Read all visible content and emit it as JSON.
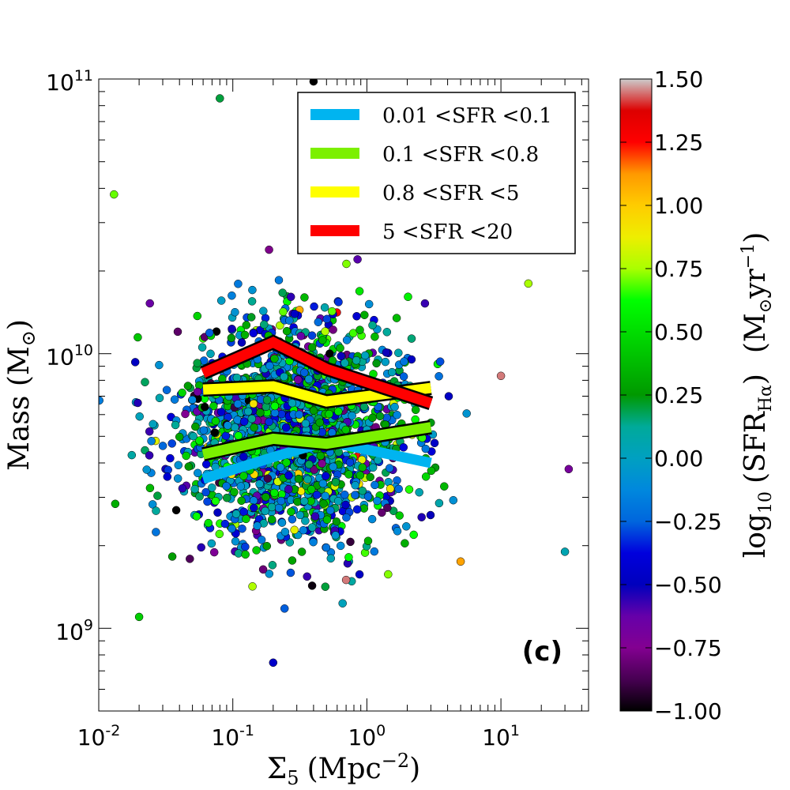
{
  "chart_data": {
    "type": "scatter",
    "panel_label": "(c)",
    "xlabel": "Σ5 (Mpc−2)",
    "xlabel_parts": {
      "symbol": "Σ",
      "sub": "5",
      "unit_open": "(Mpc",
      "sup": "−2",
      "unit_close": ")"
    },
    "ylabel": "Mass (M⊙)",
    "ylabel_parts": {
      "name": "Mass (M",
      "sub": "⊙",
      "close": ")"
    },
    "xscale": "log",
    "yscale": "log",
    "xlim": [
      0.01,
      45
    ],
    "ylim": [
      500000000,
      100000000000
    ],
    "x_ticks": [
      {
        "value": 0.01,
        "base": "10",
        "exp": "-2"
      },
      {
        "value": 0.1,
        "base": "10",
        "exp": "-1"
      },
      {
        "value": 1,
        "base": "10",
        "exp": "0"
      },
      {
        "value": 10,
        "base": "10",
        "exp": "1"
      }
    ],
    "y_ticks": [
      {
        "value": 1000000000,
        "base": "10",
        "exp": "9"
      },
      {
        "value": 10000000000,
        "base": "10",
        "exp": "10"
      },
      {
        "value": 100000000000,
        "base": "10",
        "exp": "11"
      }
    ],
    "colorbar": {
      "label": "log10 (SFRHα) (M⊙yr−1)",
      "label_parts": {
        "a": "log",
        "a_sub": "10",
        "b": "(SFR",
        "b_sub": "Hα",
        "c": ")",
        "d": "(M",
        "d_sub": "⊙",
        "e": "yr",
        "e_sup": "−1",
        "f": ")"
      },
      "range": [
        -1.0,
        1.5
      ],
      "ticks": [
        "1.50",
        "1.25",
        "1.00",
        "0.75",
        "0.50",
        "0.25",
        "0.00",
        "−0.25",
        "−0.50",
        "−0.75",
        "−1.00"
      ],
      "colormap": "nipy_spectral"
    },
    "legend": {
      "position": "top-right",
      "entries": [
        {
          "label": "0.01 <SFR <0.1",
          "color": "#00b4f0"
        },
        {
          "label": "0.1 <SFR <0.8",
          "color": "#7cf000"
        },
        {
          "label": "0.8 <SFR <5",
          "color": "#ffff00"
        },
        {
          "label": "5 <SFR <20",
          "color": "#ff0000"
        }
      ]
    },
    "series": [
      {
        "name": "0.01 <SFR <0.1",
        "color": "#00b4f0",
        "x": [
          0.06,
          0.2,
          0.5,
          3.0
        ],
        "y": [
          3500000000,
          4200000000,
          4800000000,
          4000000000
        ]
      },
      {
        "name": "0.1 <SFR <0.8",
        "color": "#7cf000",
        "x": [
          0.06,
          0.2,
          0.5,
          3.0
        ],
        "y": [
          4300000000,
          4900000000,
          4700000000,
          5400000000
        ]
      },
      {
        "name": "0.8 <SFR <5",
        "color": "#ffff00",
        "x": [
          0.06,
          0.2,
          0.5,
          3.0
        ],
        "y": [
          7400000000,
          7600000000,
          6700000000,
          7500000000
        ]
      },
      {
        "name": "5 <SFR <20",
        "color": "#ff0000",
        "x": [
          0.06,
          0.2,
          0.5,
          3.0
        ],
        "y": [
          8500000000,
          11000000000,
          8800000000,
          6600000000
        ]
      }
    ],
    "scatter": {
      "description_count": 2000,
      "center_log_x": -0.55,
      "sigma_log_x": 0.42,
      "center_log_y": 9.72,
      "sigma_log_y": 0.2,
      "sfr_mean": 0.0,
      "sfr_sigma": 0.4,
      "seed": 7
    },
    "scatter_notable_points": [
      {
        "x": 0.4,
        "y": 98000000000,
        "sfr": -1.0
      },
      {
        "x": 0.013,
        "y": 38000000000,
        "sfr": 0.7
      },
      {
        "x": 0.02,
        "y": 1100000000,
        "sfr": 0.45
      },
      {
        "x": 0.2,
        "y": 750000000,
        "sfr": -0.45
      },
      {
        "x": 0.7,
        "y": 1500000000,
        "sfr": 1.45
      },
      {
        "x": 30,
        "y": 1900000000,
        "sfr": 0.05
      },
      {
        "x": 32,
        "y": 3800000000,
        "sfr": -0.7
      },
      {
        "x": 16,
        "y": 18000000000,
        "sfr": 0.75
      },
      {
        "x": 10,
        "y": 8300000000,
        "sfr": 1.45
      },
      {
        "x": 0.08,
        "y": 85000000000,
        "sfr": 0.2
      },
      {
        "x": 5,
        "y": 1750000000,
        "sfr": 1.1
      }
    ]
  }
}
